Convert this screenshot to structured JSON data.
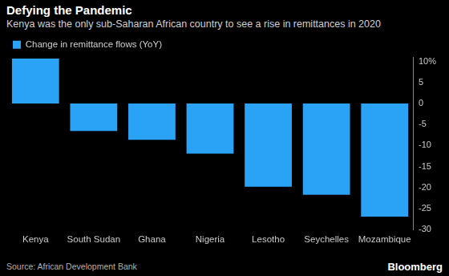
{
  "chart_data": {
    "type": "bar",
    "title": "Defying the Pandemic",
    "subtitle": "Kenya was the only sub-Saharan African country to see a rise in remittances in 2020",
    "categories": [
      "Kenya",
      "South Sudan",
      "Ghana",
      "Nigeria",
      "Lesotho",
      "Seychelles",
      "Mozambique"
    ],
    "series": [
      {
        "name": "Change in remittance flows (YoY)",
        "color": "#2aa2f5",
        "values": [
          10.7,
          -6.5,
          -8.6,
          -11.9,
          -19.8,
          -21.7,
          -26.9
        ]
      }
    ],
    "ylim": [
      -30,
      11
    ],
    "yticks": [
      {
        "value": 10,
        "label": "10%"
      },
      5,
      0,
      -5,
      -10,
      -15,
      -20,
      -25,
      -30
    ],
    "grid": false,
    "legend": "top-left",
    "source": "Source: African Development Bank",
    "logo": "Bloomberg"
  }
}
